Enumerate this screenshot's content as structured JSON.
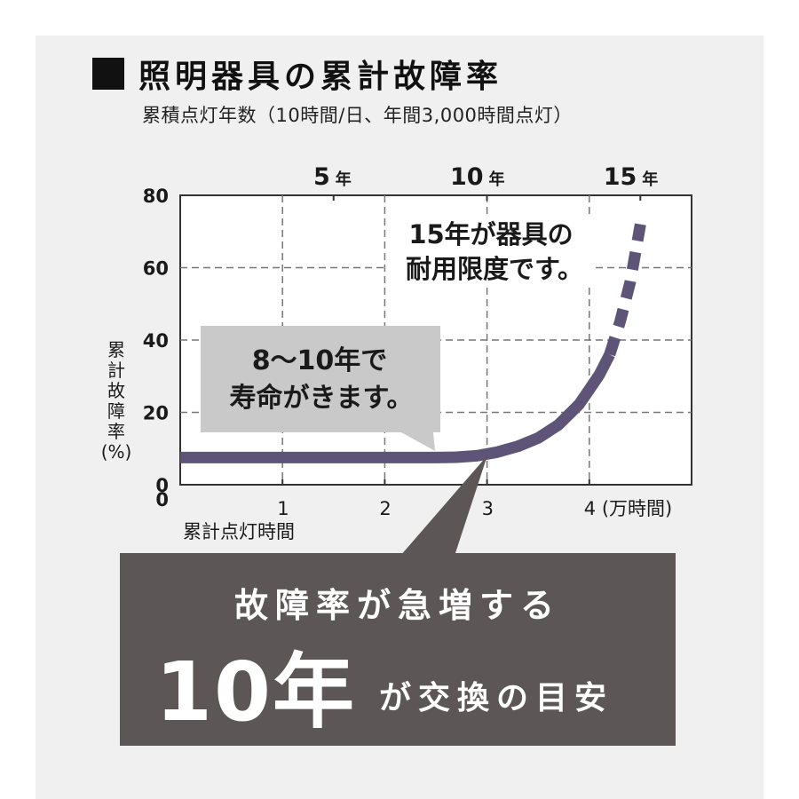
{
  "title": "照明器具の累計故障率",
  "subtitle": "累積点灯年数（10時間/日、年間3,000時間点灯）",
  "chart_data": {
    "type": "line",
    "x_axis_bottom": {
      "label": "累計点灯時間",
      "ticks": [
        {
          "value": 0,
          "label": "0"
        },
        {
          "value": 1,
          "label": "1"
        },
        {
          "value": 2,
          "label": "2"
        },
        {
          "value": 3,
          "label": "3"
        },
        {
          "value": 4,
          "label": "4 (万時間)"
        }
      ],
      "range": [
        0,
        5
      ]
    },
    "x_axis_top": {
      "ticks": [
        {
          "value": 5,
          "label_num": "5",
          "label_unit": "年"
        },
        {
          "value": 10,
          "label_num": "10",
          "label_unit": "年"
        },
        {
          "value": 15,
          "label_num": "15",
          "label_unit": "年"
        }
      ],
      "range": [
        0,
        16.67
      ]
    },
    "y_axis": {
      "label_lines": [
        "累",
        "計",
        "故",
        "障",
        "率",
        "(%)"
      ],
      "ticks": [
        0,
        20,
        40,
        60,
        80
      ],
      "range": [
        0,
        80
      ]
    },
    "grid": true,
    "series": [
      {
        "style": "solid",
        "points": [
          [
            0,
            7.5
          ],
          [
            2.5,
            7.5
          ],
          [
            2.7,
            7.6
          ],
          [
            2.9,
            8.0
          ],
          [
            3.1,
            9.0
          ],
          [
            3.3,
            10.6
          ],
          [
            3.5,
            12.9
          ],
          [
            3.7,
            16.6
          ],
          [
            3.9,
            22.2
          ],
          [
            4.0,
            26.3
          ],
          [
            4.1,
            30.5
          ],
          [
            4.2,
            36.0
          ]
        ]
      },
      {
        "style": "dashed",
        "points": [
          [
            4.2,
            36.0
          ],
          [
            4.3,
            45.0
          ],
          [
            4.4,
            56.0
          ],
          [
            4.5,
            72.0
          ]
        ]
      }
    ],
    "annotations": [
      {
        "lines": [
          "15年が器具の",
          "耐用限度です。"
        ]
      },
      {
        "lines": [
          "8〜10年で",
          "寿命がきます。"
        ]
      }
    ],
    "color_line": "#5e5478",
    "color_bubble": "#c9c9c9"
  },
  "callout": {
    "line1": "故障率が急増する",
    "big": "10年",
    "rest": "が交換の目安"
  }
}
